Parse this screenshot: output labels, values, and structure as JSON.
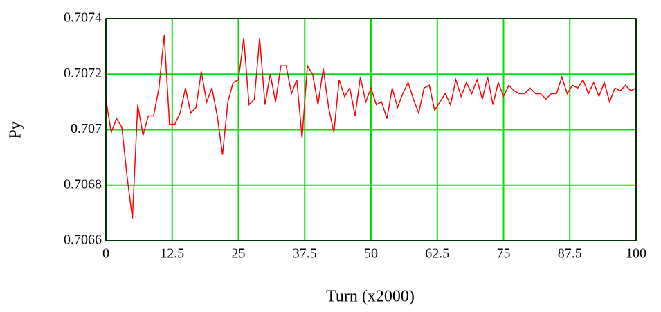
{
  "chart_data": {
    "type": "line",
    "x_label": "Turn (x2000)",
    "y_label": "Py",
    "color": "#ff0000",
    "grid": true,
    "grid_color": "#00e000",
    "x": [
      0,
      1,
      2,
      3,
      4,
      5,
      6,
      7,
      8,
      9,
      10,
      11,
      12,
      13,
      14,
      15,
      16,
      17,
      18,
      19,
      20,
      21,
      22,
      23,
      24,
      25,
      26,
      27,
      28,
      29,
      30,
      31,
      32,
      33,
      34,
      35,
      36,
      37,
      38,
      39,
      40,
      41,
      42,
      43,
      44,
      45,
      46,
      47,
      48,
      49,
      50,
      51,
      52,
      53,
      54,
      55,
      56,
      57,
      58,
      59,
      60,
      61,
      62,
      63,
      64,
      65,
      66,
      67,
      68,
      69,
      70,
      71,
      72,
      73,
      74,
      75,
      76,
      77,
      78,
      79,
      80,
      81,
      82,
      83,
      84,
      85,
      86,
      87,
      88,
      89,
      90,
      91,
      92,
      93,
      94,
      95,
      96,
      97,
      98,
      99,
      100
    ],
    "values": [
      0.70711,
      0.70699,
      0.70704,
      0.70701,
      0.70683,
      0.70668,
      0.70709,
      0.70698,
      0.70705,
      0.70705,
      0.70715,
      0.70734,
      0.70702,
      0.70702,
      0.70706,
      0.70715,
      0.70706,
      0.70708,
      0.70721,
      0.7071,
      0.70715,
      0.70705,
      0.70691,
      0.7071,
      0.70717,
      0.70718,
      0.70733,
      0.70709,
      0.70711,
      0.70733,
      0.70709,
      0.7072,
      0.7071,
      0.70723,
      0.70723,
      0.70713,
      0.70718,
      0.70697,
      0.70723,
      0.7072,
      0.70709,
      0.70722,
      0.70708,
      0.70699,
      0.70718,
      0.70712,
      0.70715,
      0.70705,
      0.70719,
      0.7071,
      0.70715,
      0.70709,
      0.7071,
      0.70704,
      0.70715,
      0.70708,
      0.70713,
      0.70717,
      0.70711,
      0.70706,
      0.70715,
      0.70716,
      0.70707,
      0.7071,
      0.70713,
      0.70709,
      0.70718,
      0.70712,
      0.70717,
      0.70713,
      0.70718,
      0.70711,
      0.70719,
      0.70709,
      0.70717,
      0.70712,
      0.70716,
      0.70714,
      0.70713,
      0.70713,
      0.70715,
      0.70713,
      0.70713,
      0.70711,
      0.70713,
      0.70713,
      0.70719,
      0.70713,
      0.70716,
      0.70715,
      0.70718,
      0.70713,
      0.70717,
      0.70712,
      0.70717,
      0.7071,
      0.70715,
      0.70714,
      0.70716,
      0.70714,
      0.70715
    ],
    "xlim": [
      0,
      100
    ],
    "xticks": [
      0,
      12.5,
      25,
      37.5,
      50,
      62.5,
      75,
      87.5,
      100
    ],
    "ylim": [
      0.7066,
      0.7074
    ],
    "yticks": [
      0.7066,
      0.7068,
      0.707,
      0.7072,
      0.7074
    ]
  }
}
